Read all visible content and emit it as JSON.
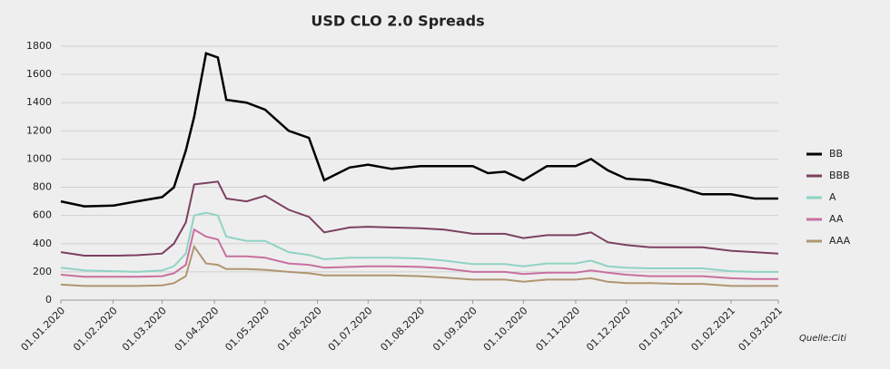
{
  "chart_data": {
    "type": "line",
    "title": "USD CLO 2.0 Spreads",
    "source": "Quelle:Citi",
    "x": [
      "2020-01-01",
      "2020-01-15",
      "2020-02-01",
      "2020-02-15",
      "2020-03-01",
      "2020-03-08",
      "2020-03-15",
      "2020-03-20",
      "2020-03-27",
      "2020-04-03",
      "2020-04-08",
      "2020-04-20",
      "2020-05-01",
      "2020-05-15",
      "2020-05-27",
      "2020-06-05",
      "2020-06-20",
      "2020-07-01",
      "2020-07-15",
      "2020-08-01",
      "2020-08-15",
      "2020-09-01",
      "2020-09-10",
      "2020-09-20",
      "2020-10-01",
      "2020-10-15",
      "2020-11-01",
      "2020-11-10",
      "2020-11-20",
      "2020-12-01",
      "2020-12-15",
      "2021-01-01",
      "2021-01-15",
      "2021-02-01",
      "2021-02-15",
      "2021-03-01"
    ],
    "series": [
      {
        "name": "BB",
        "color": "#000000",
        "values": [
          700,
          665,
          670,
          700,
          730,
          800,
          1060,
          1300,
          1750,
          1720,
          1420,
          1400,
          1350,
          1200,
          1150,
          850,
          940,
          960,
          930,
          950,
          950,
          950,
          900,
          910,
          850,
          950,
          950,
          1000,
          920,
          860,
          850,
          800,
          750,
          750,
          720,
          720
        ]
      },
      {
        "name": "BBB",
        "color": "#7b4060",
        "values": [
          340,
          315,
          315,
          318,
          330,
          400,
          550,
          820,
          830,
          840,
          720,
          700,
          740,
          640,
          590,
          480,
          515,
          520,
          515,
          510,
          500,
          470,
          470,
          470,
          440,
          460,
          460,
          480,
          410,
          390,
          375,
          375,
          375,
          350,
          340,
          330
        ]
      },
      {
        "name": "A",
        "color": "#8fd3c3",
        "values": [
          230,
          210,
          205,
          200,
          210,
          240,
          330,
          600,
          620,
          600,
          450,
          420,
          420,
          340,
          320,
          290,
          300,
          300,
          300,
          295,
          280,
          255,
          255,
          255,
          240,
          260,
          260,
          280,
          240,
          230,
          225,
          225,
          225,
          205,
          200,
          200
        ]
      },
      {
        "name": "AA",
        "color": "#c870a0",
        "values": [
          180,
          165,
          165,
          165,
          170,
          190,
          250,
          500,
          450,
          430,
          310,
          310,
          300,
          260,
          250,
          230,
          235,
          240,
          240,
          235,
          225,
          200,
          200,
          200,
          185,
          195,
          195,
          210,
          195,
          180,
          170,
          170,
          170,
          155,
          150,
          150
        ]
      },
      {
        "name": "AAA",
        "color": "#b09570",
        "values": [
          110,
          100,
          100,
          100,
          105,
          120,
          170,
          380,
          260,
          250,
          220,
          220,
          215,
          200,
          190,
          175,
          175,
          175,
          175,
          170,
          160,
          145,
          145,
          145,
          130,
          145,
          145,
          155,
          130,
          120,
          120,
          115,
          115,
          100,
          100,
          100
        ]
      }
    ],
    "ylim": [
      0,
      1800
    ],
    "yticks": [
      0,
      200,
      400,
      600,
      800,
      1000,
      1200,
      1400,
      1600,
      1800
    ],
    "xlim": [
      "2020-01-01",
      "2021-03-01"
    ],
    "xticks": [
      {
        "value": "2020-01-01",
        "label": "01.01.2020"
      },
      {
        "value": "2020-02-01",
        "label": "01.02.2020"
      },
      {
        "value": "2020-03-01",
        "label": "01.03.2020"
      },
      {
        "value": "2020-04-01",
        "label": "01.04.2020"
      },
      {
        "value": "2020-05-01",
        "label": "01.05.2020"
      },
      {
        "value": "2020-06-01",
        "label": "01.06.2020"
      },
      {
        "value": "2020-07-01",
        "label": "01.07.2020"
      },
      {
        "value": "2020-08-01",
        "label": "01.08.2020"
      },
      {
        "value": "2020-09-01",
        "label": "01.09.2020"
      },
      {
        "value": "2020-10-01",
        "label": "01.10.2020"
      },
      {
        "value": "2020-11-01",
        "label": "01.11.2020"
      },
      {
        "value": "2020-12-01",
        "label": "01.12.2020"
      },
      {
        "value": "2021-01-01",
        "label": "01.01.2021"
      },
      {
        "value": "2021-02-01",
        "label": "01.02.2021"
      },
      {
        "value": "2021-03-01",
        "label": "01.03.2021"
      }
    ],
    "grid": true,
    "legend": "right"
  }
}
